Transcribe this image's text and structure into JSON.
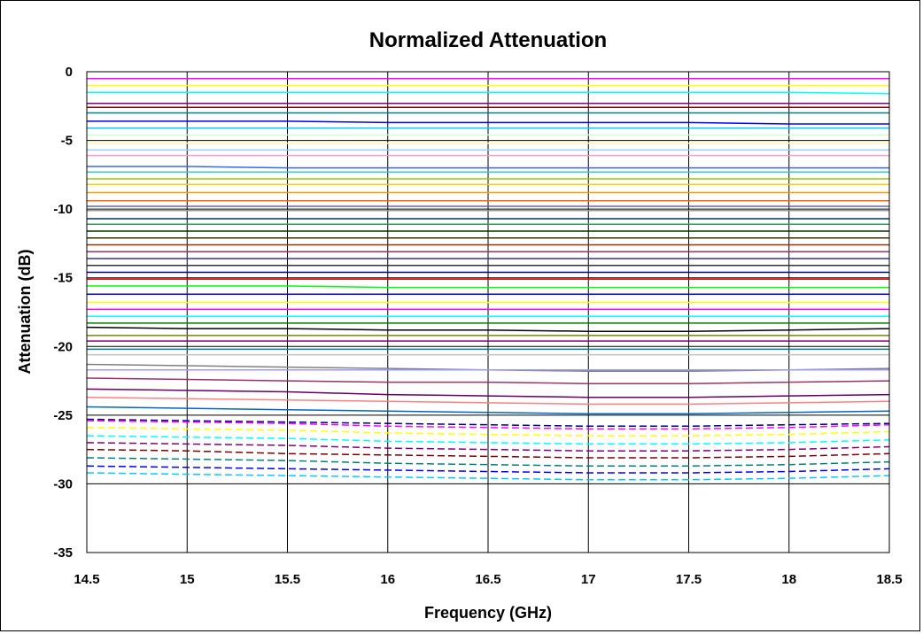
{
  "chart_data": {
    "type": "line",
    "title": "Normalized Attenuation",
    "xlabel": "Frequency (GHz)",
    "ylabel": "Attenuation (dB)",
    "xlim": [
      14.5,
      18.5
    ],
    "ylim": [
      -35,
      0
    ],
    "grid": true,
    "legend": "none",
    "x_ticks": [
      "14.5",
      "15",
      "15.5",
      "16",
      "16.5",
      "17",
      "17.5",
      "18",
      "18.5"
    ],
    "y_ticks": [
      "0",
      "-5",
      "-10",
      "-15",
      "-20",
      "-25",
      "-30",
      "-35"
    ],
    "x": [
      14.5,
      15,
      15.5,
      16,
      16.5,
      17,
      17.5,
      18,
      18.5
    ],
    "series": [
      {
        "values": [
          -0.5,
          -0.5,
          -0.5,
          -0.5,
          -0.5,
          -0.5,
          -0.5,
          -0.5,
          -0.5
        ],
        "color": "#ff00ff",
        "dash": false
      },
      {
        "values": [
          -1.0,
          -1.0,
          -1.0,
          -1.0,
          -1.0,
          -1.0,
          -1.0,
          -1.0,
          -1.0
        ],
        "color": "#ffff00",
        "dash": false
      },
      {
        "values": [
          -1.5,
          -1.5,
          -1.5,
          -1.5,
          -1.5,
          -1.5,
          -1.5,
          -1.5,
          -1.6
        ],
        "color": "#00ffff",
        "dash": false
      },
      {
        "values": [
          -2.3,
          -2.3,
          -2.3,
          -2.3,
          -2.3,
          -2.3,
          -2.3,
          -2.3,
          -2.3
        ],
        "color": "#800080",
        "dash": false
      },
      {
        "values": [
          -2.6,
          -2.6,
          -2.6,
          -2.6,
          -2.6,
          -2.6,
          -2.6,
          -2.6,
          -2.6
        ],
        "color": "#800000",
        "dash": false
      },
      {
        "values": [
          -3.0,
          -3.0,
          -3.0,
          -3.0,
          -3.0,
          -3.0,
          -3.0,
          -3.0,
          -3.0
        ],
        "color": "#008080",
        "dash": false
      },
      {
        "values": [
          -3.6,
          -3.6,
          -3.6,
          -3.7,
          -3.7,
          -3.7,
          -3.7,
          -3.8,
          -3.8
        ],
        "color": "#0000ff",
        "dash": false
      },
      {
        "values": [
          -4.1,
          -4.1,
          -4.1,
          -4.1,
          -4.1,
          -4.1,
          -4.1,
          -4.1,
          -4.1
        ],
        "color": "#00ccff",
        "dash": false
      },
      {
        "values": [
          -4.6,
          -4.6,
          -4.6,
          -4.6,
          -4.6,
          -4.6,
          -4.6,
          -4.6,
          -4.6
        ],
        "color": "#ccffcc",
        "dash": false
      },
      {
        "values": [
          -5.2,
          -5.2,
          -5.2,
          -5.2,
          -5.2,
          -5.2,
          -5.2,
          -5.2,
          -5.2
        ],
        "color": "#ffff99",
        "dash": false
      },
      {
        "values": [
          -5.7,
          -5.7,
          -5.7,
          -5.7,
          -5.7,
          -5.7,
          -5.7,
          -5.7,
          -5.7
        ],
        "color": "#99ccff",
        "dash": false
      },
      {
        "values": [
          -6.1,
          -6.1,
          -6.1,
          -6.1,
          -6.1,
          -6.1,
          -6.1,
          -6.1,
          -6.1
        ],
        "color": "#ff99cc",
        "dash": false
      },
      {
        "values": [
          -6.9,
          -6.9,
          -7.0,
          -7.0,
          -7.0,
          -7.0,
          -7.0,
          -7.0,
          -7.0
        ],
        "color": "#3366ff",
        "dash": false
      },
      {
        "values": [
          -7.3,
          -7.3,
          -7.3,
          -7.3,
          -7.3,
          -7.3,
          -7.3,
          -7.3,
          -7.3
        ],
        "color": "#33cccc",
        "dash": false
      },
      {
        "values": [
          -7.8,
          -7.8,
          -7.8,
          -7.8,
          -7.8,
          -7.8,
          -7.8,
          -7.8,
          -7.8
        ],
        "color": "#99cc00",
        "dash": false
      },
      {
        "values": [
          -8.2,
          -8.2,
          -8.2,
          -8.2,
          -8.2,
          -8.2,
          -8.2,
          -8.2,
          -8.2
        ],
        "color": "#ffcc00",
        "dash": false
      },
      {
        "values": [
          -8.8,
          -8.8,
          -8.8,
          -8.8,
          -8.8,
          -8.8,
          -8.8,
          -8.8,
          -8.8
        ],
        "color": "#ff9900",
        "dash": false
      },
      {
        "values": [
          -9.4,
          -9.4,
          -9.4,
          -9.4,
          -9.4,
          -9.4,
          -9.4,
          -9.4,
          -9.4
        ],
        "color": "#ff6600",
        "dash": false
      },
      {
        "values": [
          -9.8,
          -9.8,
          -9.8,
          -9.8,
          -9.8,
          -9.8,
          -9.8,
          -9.8,
          -9.8
        ],
        "color": "#666699",
        "dash": false
      },
      {
        "values": [
          -10.1,
          -10.1,
          -10.1,
          -10.1,
          -10.1,
          -10.1,
          -10.1,
          -10.1,
          -10.1
        ],
        "color": "#969696",
        "dash": false
      },
      {
        "values": [
          -10.7,
          -10.7,
          -10.7,
          -10.7,
          -10.7,
          -10.7,
          -10.7,
          -10.7,
          -10.7
        ],
        "color": "#003366",
        "dash": false
      },
      {
        "values": [
          -11.1,
          -11.1,
          -11.1,
          -11.1,
          -11.1,
          -11.1,
          -11.1,
          -11.1,
          -11.1
        ],
        "color": "#339966",
        "dash": false
      },
      {
        "values": [
          -11.6,
          -11.6,
          -11.6,
          -11.6,
          -11.6,
          -11.6,
          -11.6,
          -11.6,
          -11.6
        ],
        "color": "#003300",
        "dash": false
      },
      {
        "values": [
          -12.1,
          -12.1,
          -12.1,
          -12.1,
          -12.1,
          -12.1,
          -12.1,
          -12.1,
          -12.1
        ],
        "color": "#333300",
        "dash": false
      },
      {
        "values": [
          -12.6,
          -12.6,
          -12.6,
          -12.6,
          -12.6,
          -12.6,
          -12.6,
          -12.6,
          -12.6
        ],
        "color": "#993300",
        "dash": false
      },
      {
        "values": [
          -13.1,
          -13.1,
          -13.1,
          -13.1,
          -13.1,
          -13.1,
          -13.1,
          -13.1,
          -13.1
        ],
        "color": "#993366",
        "dash": false
      },
      {
        "values": [
          -13.6,
          -13.6,
          -13.6,
          -13.6,
          -13.6,
          -13.6,
          -13.6,
          -13.6,
          -13.6
        ],
        "color": "#333399",
        "dash": false
      },
      {
        "values": [
          -14.1,
          -14.1,
          -14.1,
          -14.1,
          -14.1,
          -14.1,
          -14.1,
          -14.1,
          -14.1
        ],
        "color": "#333333",
        "dash": false
      },
      {
        "values": [
          -14.6,
          -14.6,
          -14.6,
          -14.6,
          -14.6,
          -14.6,
          -14.6,
          -14.6,
          -14.6
        ],
        "color": "#000080",
        "dash": false
      },
      {
        "values": [
          -15.1,
          -15.1,
          -15.1,
          -15.1,
          -15.1,
          -15.1,
          -15.1,
          -15.1,
          -15.1
        ],
        "color": "#ff0000",
        "dash": false
      },
      {
        "values": [
          -15.6,
          -15.6,
          -15.6,
          -15.7,
          -15.7,
          -15.7,
          -15.7,
          -15.7,
          -15.7
        ],
        "color": "#00ff00",
        "dash": false
      },
      {
        "values": [
          -16.2,
          -16.2,
          -16.2,
          -16.2,
          -16.2,
          -16.2,
          -16.2,
          -16.2,
          -16.2
        ],
        "color": "#0000ff",
        "dash": false
      },
      {
        "values": [
          -16.8,
          -16.8,
          -16.8,
          -16.8,
          -16.8,
          -16.8,
          -16.8,
          -16.8,
          -16.8
        ],
        "color": "#ffff00",
        "dash": false
      },
      {
        "values": [
          -17.3,
          -17.3,
          -17.3,
          -17.3,
          -17.3,
          -17.3,
          -17.3,
          -17.3,
          -17.3
        ],
        "color": "#ff00ff",
        "dash": false
      },
      {
        "values": [
          -17.8,
          -17.8,
          -17.8,
          -17.8,
          -17.8,
          -17.8,
          -17.8,
          -17.8,
          -17.8
        ],
        "color": "#00ffff",
        "dash": false
      },
      {
        "values": [
          -18.3,
          -18.3,
          -18.3,
          -18.3,
          -18.3,
          -18.3,
          -18.3,
          -18.3,
          -18.3
        ],
        "color": "#008000",
        "dash": false
      },
      {
        "values": [
          -18.6,
          -18.7,
          -18.7,
          -18.8,
          -18.8,
          -18.9,
          -18.9,
          -18.8,
          -18.7
        ],
        "color": "#000000",
        "dash": false
      },
      {
        "values": [
          -19.2,
          -19.2,
          -19.2,
          -19.2,
          -19.2,
          -19.2,
          -19.2,
          -19.2,
          -19.2
        ],
        "color": "#808000",
        "dash": false
      },
      {
        "values": [
          -19.6,
          -19.6,
          -19.6,
          -19.6,
          -19.6,
          -19.6,
          -19.6,
          -19.6,
          -19.6
        ],
        "color": "#800080",
        "dash": false
      },
      {
        "values": [
          -20.2,
          -20.2,
          -20.2,
          -20.2,
          -20.2,
          -20.2,
          -20.2,
          -20.2,
          -20.2
        ],
        "color": "#008080",
        "dash": false
      },
      {
        "values": [
          -20.6,
          -20.6,
          -20.6,
          -20.6,
          -20.6,
          -20.6,
          -20.6,
          -20.6,
          -20.6
        ],
        "color": "#c0c0c0",
        "dash": false
      },
      {
        "values": [
          -21.3,
          -21.4,
          -21.5,
          -21.6,
          -21.7,
          -21.8,
          -21.8,
          -21.7,
          -21.6
        ],
        "color": "#808080",
        "dash": false
      },
      {
        "values": [
          -21.7,
          -21.7,
          -21.7,
          -21.7,
          -21.7,
          -21.7,
          -21.7,
          -21.7,
          -21.7
        ],
        "color": "#9999ff",
        "dash": false
      },
      {
        "values": [
          -22.3,
          -22.4,
          -22.5,
          -22.6,
          -22.6,
          -22.7,
          -22.7,
          -22.6,
          -22.5
        ],
        "color": "#993366",
        "dash": false
      },
      {
        "values": [
          -23.1,
          -23.2,
          -23.3,
          -23.5,
          -23.6,
          -23.7,
          -23.7,
          -23.6,
          -23.5
        ],
        "color": "#660066",
        "dash": false
      },
      {
        "values": [
          -23.7,
          -23.8,
          -23.9,
          -24.0,
          -24.1,
          -24.2,
          -24.2,
          -24.1,
          -24.0
        ],
        "color": "#ff8080",
        "dash": false
      },
      {
        "values": [
          -24.4,
          -24.5,
          -24.6,
          -24.7,
          -24.8,
          -24.9,
          -24.9,
          -24.8,
          -24.7
        ],
        "color": "#0066cc",
        "dash": false
      },
      {
        "values": [
          -25.3,
          -25.4,
          -25.5,
          -25.6,
          -25.7,
          -25.8,
          -25.8,
          -25.7,
          -25.6
        ],
        "color": "#000080",
        "dash": true
      },
      {
        "values": [
          -25.4,
          -25.5,
          -25.6,
          -25.8,
          -25.9,
          -26.0,
          -26.0,
          -25.9,
          -25.7
        ],
        "color": "#ff00ff",
        "dash": true
      },
      {
        "values": [
          -25.9,
          -26.0,
          -26.1,
          -26.3,
          -26.4,
          -26.5,
          -26.5,
          -26.4,
          -26.2
        ],
        "color": "#ffff00",
        "dash": true
      },
      {
        "values": [
          -26.5,
          -26.6,
          -26.7,
          -26.9,
          -27.0,
          -27.1,
          -27.1,
          -27.0,
          -26.8
        ],
        "color": "#00ffff",
        "dash": true
      },
      {
        "values": [
          -27.0,
          -27.1,
          -27.2,
          -27.4,
          -27.5,
          -27.6,
          -27.6,
          -27.5,
          -27.3
        ],
        "color": "#800080",
        "dash": true
      },
      {
        "values": [
          -27.5,
          -27.6,
          -27.8,
          -27.9,
          -28.0,
          -28.1,
          -28.1,
          -28.0,
          -27.8
        ],
        "color": "#800000",
        "dash": true
      },
      {
        "values": [
          -28.1,
          -28.2,
          -28.3,
          -28.5,
          -28.6,
          -28.7,
          -28.7,
          -28.6,
          -28.4
        ],
        "color": "#008080",
        "dash": true
      },
      {
        "values": [
          -28.7,
          -28.8,
          -28.9,
          -29.0,
          -29.1,
          -29.2,
          -29.2,
          -29.1,
          -28.9
        ],
        "color": "#0000ff",
        "dash": true
      },
      {
        "values": [
          -29.2,
          -29.3,
          -29.4,
          -29.5,
          -29.6,
          -29.7,
          -29.7,
          -29.6,
          -29.4
        ],
        "color": "#00ccff",
        "dash": true
      }
    ]
  }
}
